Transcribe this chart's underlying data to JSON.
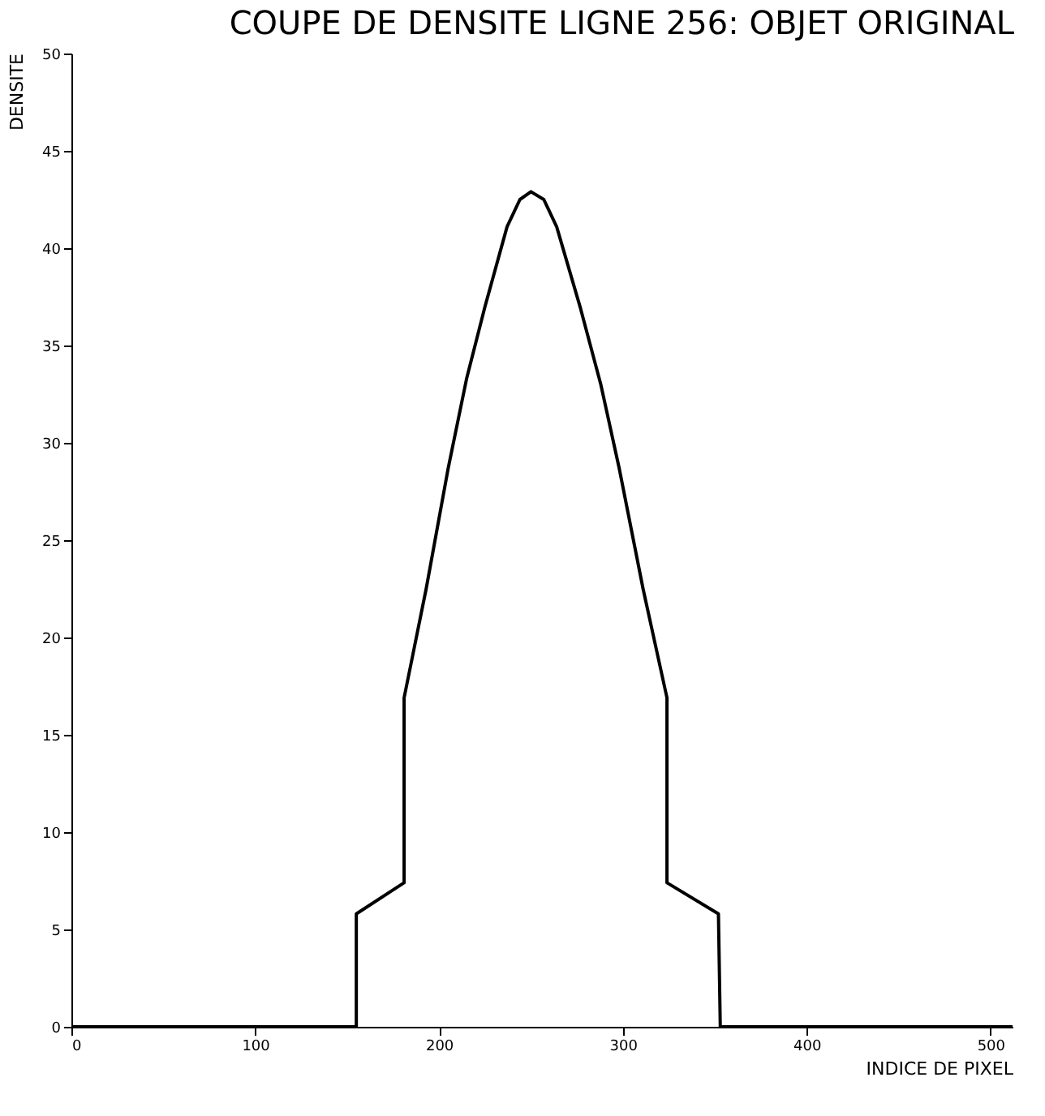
{
  "chart_data": {
    "type": "line",
    "title": "COUPE DE DENSITE LIGNE 256: OBJET ORIGINAL",
    "xlabel": "INDICE DE PIXEL",
    "ylabel": "DENSITE",
    "x": [
      0,
      155,
      155,
      181,
      181,
      193,
      205,
      215,
      225,
      237,
      244,
      250,
      257,
      264,
      277,
      288,
      298,
      311,
      324,
      324,
      352,
      353,
      512
    ],
    "series": [
      {
        "color": "#000000",
        "values": [
          0,
          0,
          5.8,
          7.4,
          16.9,
          22.5,
          28.7,
          33.3,
          37,
          41.1,
          42.5,
          42.9,
          42.5,
          41.1,
          36.9,
          33,
          28.7,
          22.5,
          16.9,
          7.4,
          5.8,
          0,
          0
        ]
      }
    ],
    "xlim": [
      0,
      512
    ],
    "xticks": [
      0,
      100,
      200,
      300,
      400,
      500
    ],
    "ylim": [
      0,
      50
    ],
    "yticks": [
      0,
      5,
      10,
      15,
      20,
      25,
      30,
      35,
      40,
      45,
      50
    ],
    "grid": false,
    "legend": false,
    "marker": "none",
    "line_style": "solid"
  }
}
